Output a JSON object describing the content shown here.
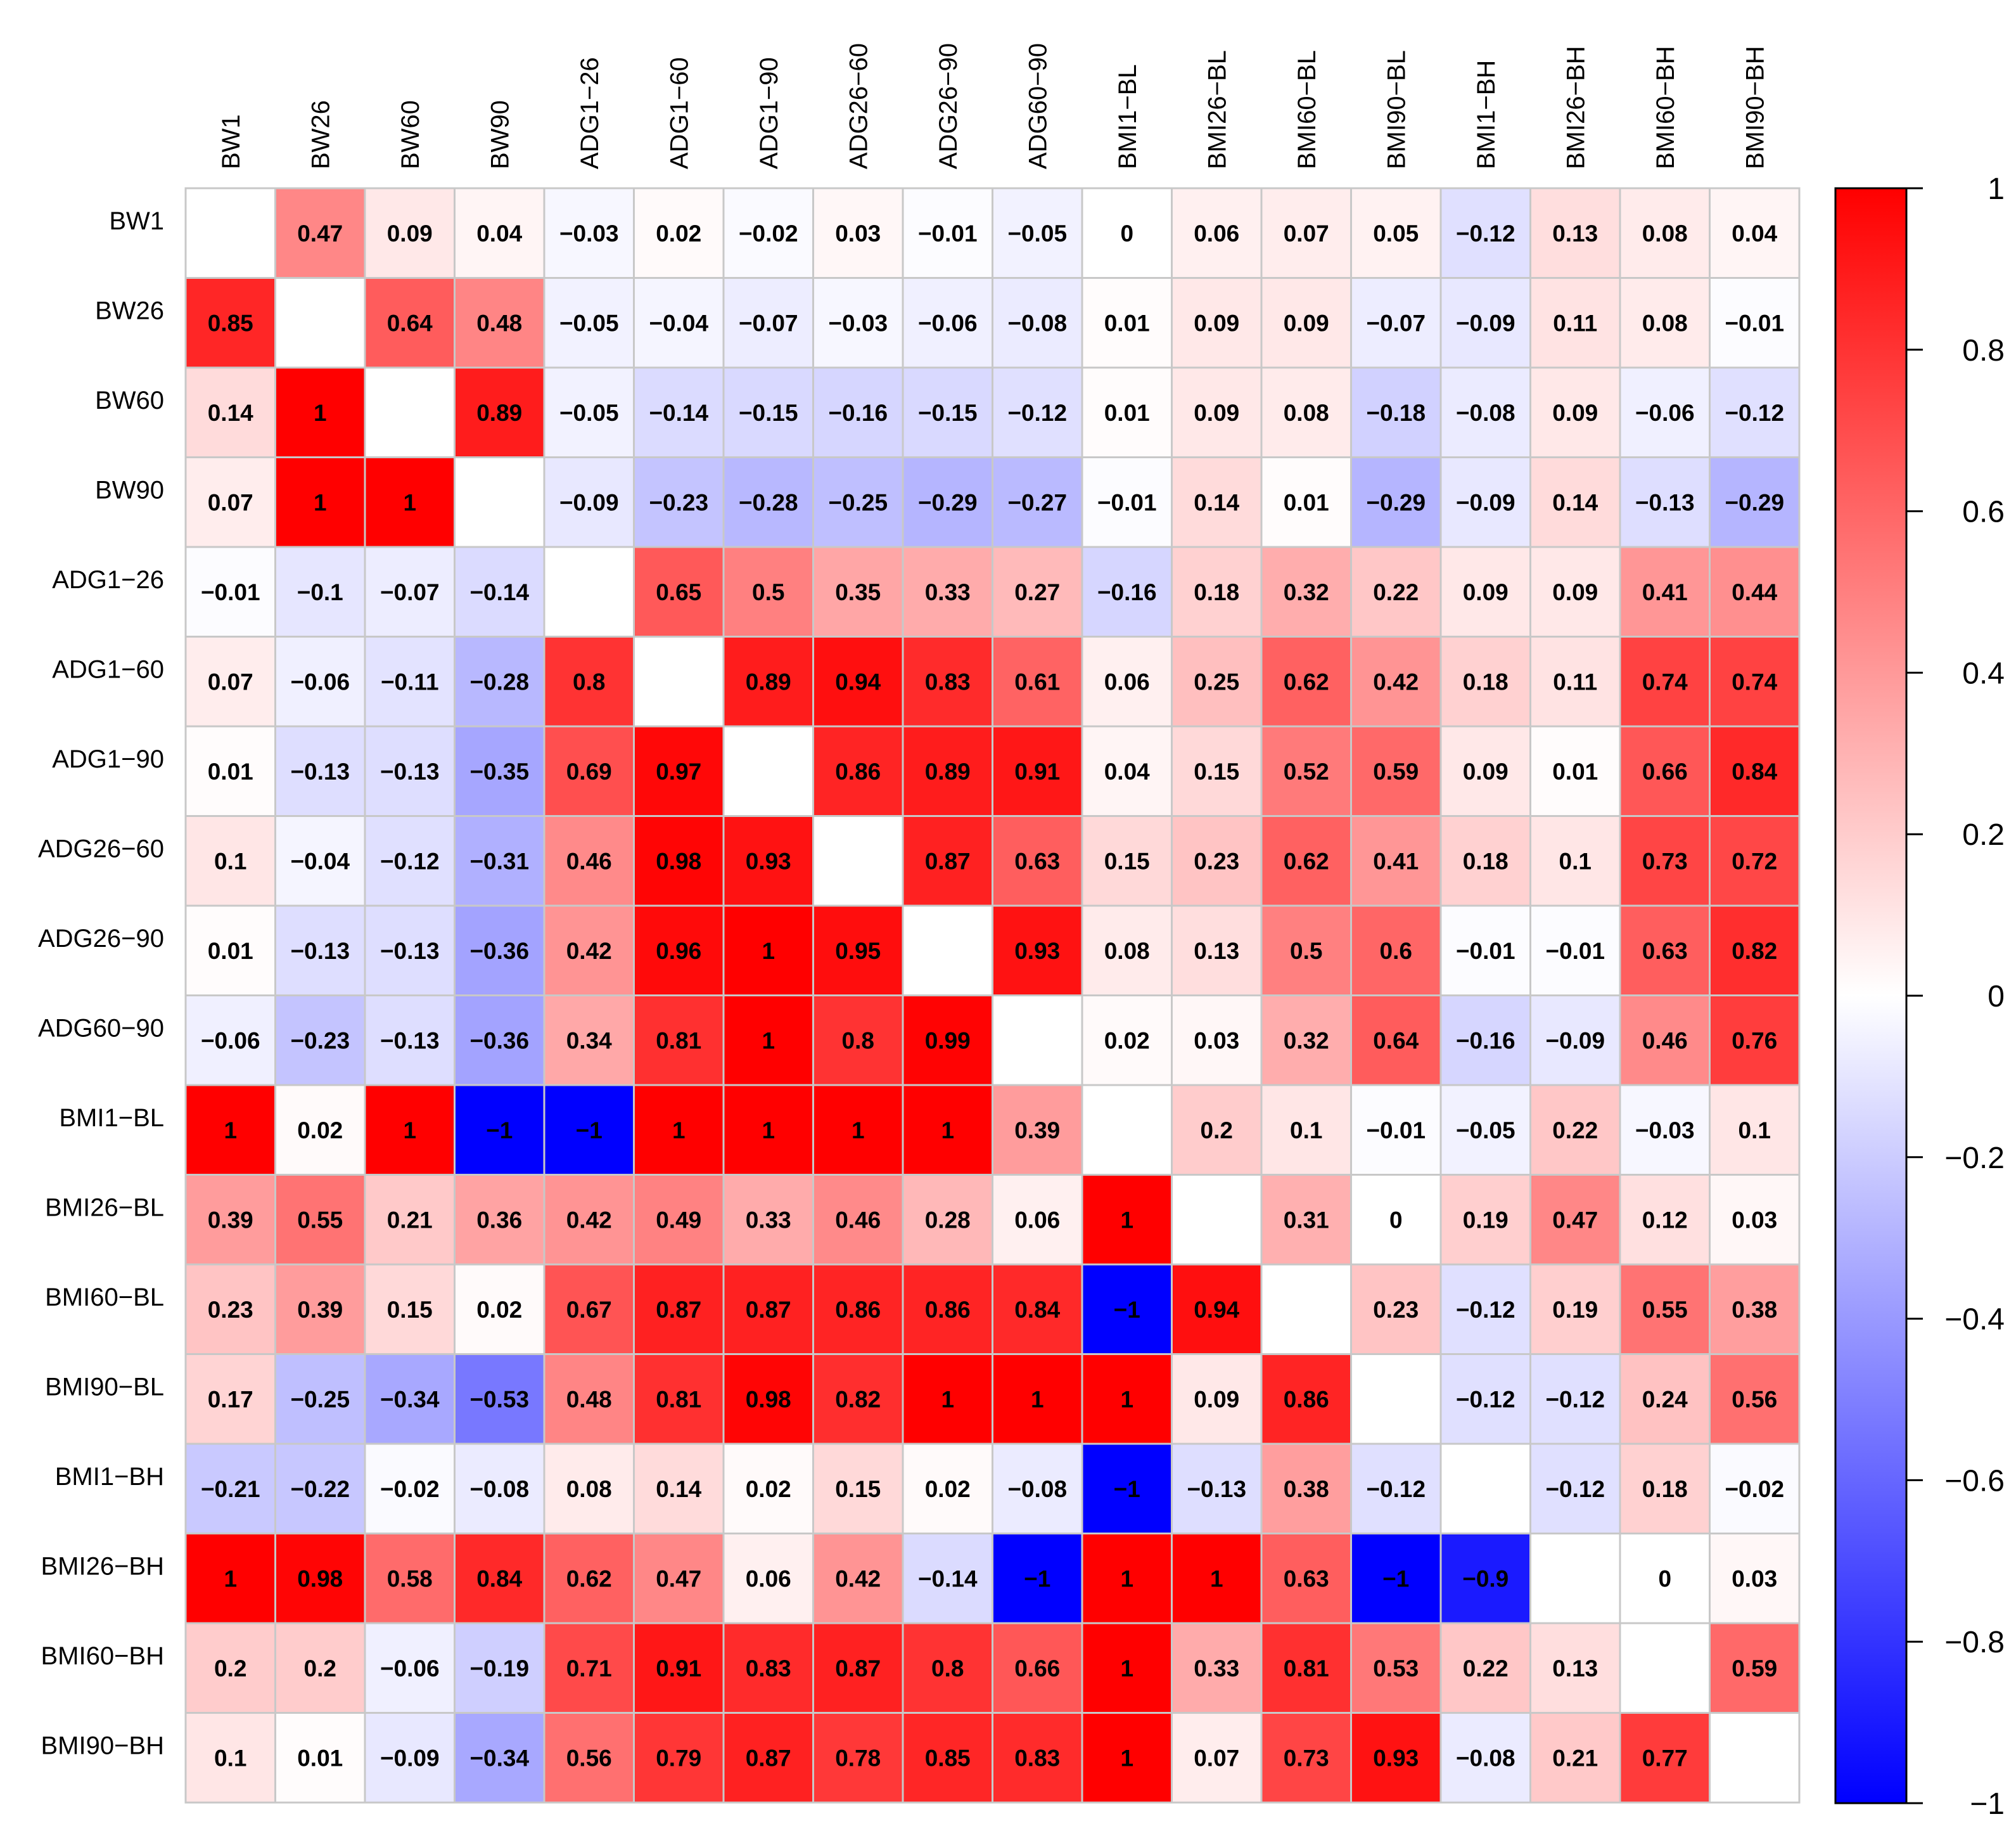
{
  "chart_data": {
    "type": "heatmap",
    "title": "",
    "xlabel": "",
    "ylabel": "",
    "variables": [
      "BW1",
      "BW26",
      "BW60",
      "BW90",
      "ADG1−26",
      "ADG1−60",
      "ADG1−90",
      "ADG26−60",
      "ADG26−90",
      "ADG60−90",
      "BMI1−BL",
      "BMI26−BL",
      "BMI60−BL",
      "BMI90−BL",
      "BMI1−BH",
      "BMI26−BH",
      "BMI60−BH",
      "BMI90−BH"
    ],
    "values": [
      [
        null,
        0.47,
        0.09,
        0.04,
        -0.03,
        0.02,
        -0.02,
        0.03,
        -0.01,
        -0.05,
        0,
        0.06,
        0.07,
        0.05,
        -0.12,
        0.13,
        0.08,
        0.04
      ],
      [
        0.85,
        null,
        0.64,
        0.48,
        -0.05,
        -0.04,
        -0.07,
        -0.03,
        -0.06,
        -0.08,
        0.01,
        0.09,
        0.09,
        -0.07,
        -0.09,
        0.11,
        0.08,
        -0.01
      ],
      [
        0.14,
        1,
        null,
        0.89,
        -0.05,
        -0.14,
        -0.15,
        -0.16,
        -0.15,
        -0.12,
        0.01,
        0.09,
        0.08,
        -0.18,
        -0.08,
        0.09,
        -0.06,
        -0.12
      ],
      [
        0.07,
        1,
        1,
        null,
        -0.09,
        -0.23,
        -0.28,
        -0.25,
        -0.29,
        -0.27,
        -0.01,
        0.14,
        0.01,
        -0.29,
        -0.09,
        0.14,
        -0.13,
        -0.29
      ],
      [
        -0.01,
        -0.1,
        -0.07,
        -0.14,
        null,
        0.65,
        0.5,
        0.35,
        0.33,
        0.27,
        -0.16,
        0.18,
        0.32,
        0.22,
        0.09,
        0.09,
        0.41,
        0.44
      ],
      [
        0.07,
        -0.06,
        -0.11,
        -0.28,
        0.8,
        null,
        0.89,
        0.94,
        0.83,
        0.61,
        0.06,
        0.25,
        0.62,
        0.42,
        0.18,
        0.11,
        0.74,
        0.74
      ],
      [
        0.01,
        -0.13,
        -0.13,
        -0.35,
        0.69,
        0.97,
        null,
        0.86,
        0.89,
        0.91,
        0.04,
        0.15,
        0.52,
        0.59,
        0.09,
        0.01,
        0.66,
        0.84
      ],
      [
        0.1,
        -0.04,
        -0.12,
        -0.31,
        0.46,
        0.98,
        0.93,
        null,
        0.87,
        0.63,
        0.15,
        0.23,
        0.62,
        0.41,
        0.18,
        0.1,
        0.73,
        0.72
      ],
      [
        0.01,
        -0.13,
        -0.13,
        -0.36,
        0.42,
        0.96,
        1,
        0.95,
        null,
        0.93,
        0.08,
        0.13,
        0.5,
        0.6,
        -0.01,
        -0.01,
        0.63,
        0.82
      ],
      [
        -0.06,
        -0.23,
        -0.13,
        -0.36,
        0.34,
        0.81,
        1,
        0.8,
        0.99,
        null,
        0.02,
        0.03,
        0.32,
        0.64,
        -0.16,
        -0.09,
        0.46,
        0.76
      ],
      [
        1,
        0.02,
        1,
        -1,
        -1,
        1,
        1,
        1,
        1,
        0.39,
        null,
        0.2,
        0.1,
        -0.01,
        -0.05,
        0.22,
        -0.03,
        0.1
      ],
      [
        0.39,
        0.55,
        0.21,
        0.36,
        0.42,
        0.49,
        0.33,
        0.46,
        0.28,
        0.06,
        1,
        null,
        0.31,
        0,
        0.19,
        0.47,
        0.12,
        0.03
      ],
      [
        0.23,
        0.39,
        0.15,
        0.02,
        0.67,
        0.87,
        0.87,
        0.86,
        0.86,
        0.84,
        -1,
        0.94,
        null,
        0.23,
        -0.12,
        0.19,
        0.55,
        0.38
      ],
      [
        0.17,
        -0.25,
        -0.34,
        -0.53,
        0.48,
        0.81,
        0.98,
        0.82,
        1,
        1,
        1,
        0.09,
        0.86,
        null,
        -0.12,
        -0.12,
        0.24,
        0.56
      ],
      [
        -0.21,
        -0.22,
        -0.02,
        -0.08,
        0.08,
        0.14,
        0.02,
        0.15,
        0.02,
        -0.08,
        -1,
        -0.13,
        0.38,
        -0.12,
        null,
        -0.12,
        0.18,
        -0.02
      ],
      [
        1,
        0.98,
        0.58,
        0.84,
        0.62,
        0.47,
        0.06,
        0.42,
        -0.14,
        -1,
        1,
        1,
        0.63,
        -1,
        -0.9,
        null,
        0,
        0.03
      ],
      [
        0.2,
        0.2,
        -0.06,
        -0.19,
        0.71,
        0.91,
        0.83,
        0.87,
        0.8,
        0.66,
        1,
        0.33,
        0.81,
        0.53,
        0.22,
        0.13,
        null,
        0.59
      ],
      [
        0.1,
        0.01,
        -0.09,
        -0.34,
        0.56,
        0.79,
        0.87,
        0.78,
        0.85,
        0.83,
        1,
        0.07,
        0.73,
        0.93,
        -0.08,
        0.21,
        0.77,
        null
      ]
    ],
    "color_scale": {
      "range": [
        -1,
        1
      ],
      "low_color": "#0000ff",
      "mid_color": "#ffffff",
      "high_color": "#ff0000",
      "ticks": [
        1,
        0.8,
        0.6,
        0.4,
        0.2,
        0,
        -0.2,
        -0.4,
        -0.6,
        -0.8,
        -1
      ],
      "tick_labels": [
        "1",
        "0.8",
        "0.6",
        "0.4",
        "0.2",
        "0",
        "−0.2",
        "−0.4",
        "−0.6",
        "−0.8",
        "−1"
      ]
    },
    "legend_placement": "right",
    "grid": true
  }
}
